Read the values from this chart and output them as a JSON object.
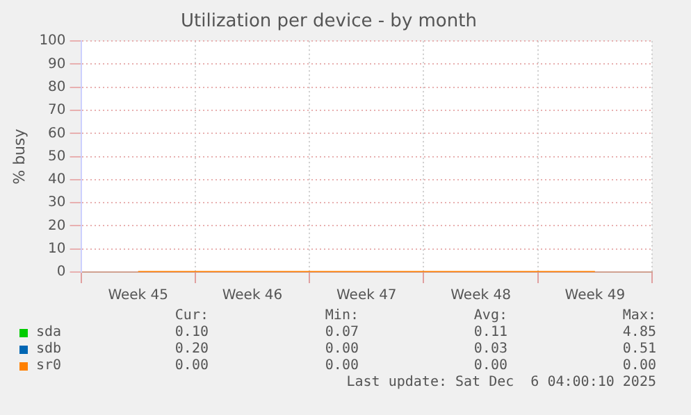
{
  "chart_data": {
    "type": "line",
    "title": "Utilization per device - by month",
    "ylabel": "% busy",
    "categories": [
      "Week 45",
      "Week 46",
      "Week 47",
      "Week 48",
      "Week 49"
    ],
    "series": [
      {
        "name": "sda",
        "color": "#00cc00",
        "values": [
          null,
          null,
          null,
          null,
          null
        ]
      },
      {
        "name": "sdb",
        "color": "#0066b3",
        "values": [
          null,
          null,
          null,
          null,
          null
        ]
      },
      {
        "name": "sr0",
        "color": "#ff8000",
        "values": [
          0,
          0,
          0,
          0,
          0
        ]
      }
    ],
    "ylim": [
      0,
      100
    ],
    "yticks": [
      0,
      10,
      20,
      30,
      40,
      50,
      60,
      70,
      80,
      90,
      100
    ],
    "grid": true,
    "legend": "bottom",
    "marker": "none",
    "annotations": [
      "Cur:",
      "Min:",
      "Avg:",
      "Max:",
      "0.10",
      "0.07",
      "0.11",
      "4.85",
      "0.20",
      "0.00",
      "0.03",
      "0.51",
      "0.00",
      "0.00",
      "0.00",
      "0.00",
      "Last update: Sat Dec  6 04:00:10 2025"
    ]
  }
}
